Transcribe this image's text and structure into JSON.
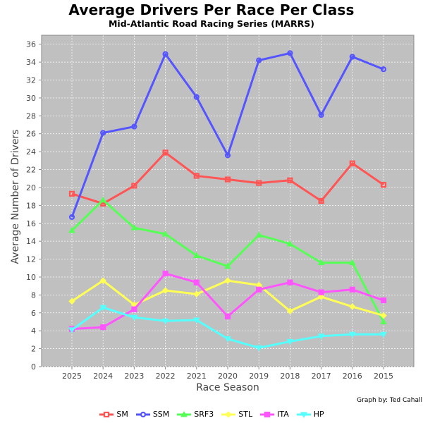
{
  "chart_data": {
    "type": "line",
    "title": "Average Drivers Per Race Per Class",
    "subtitle": "Mid-Atlantic Road Racing Series (MARRS)",
    "xlabel": "Race Season",
    "ylabel": "Average Number of Drivers",
    "credit": "Graph by: Ted Cahall",
    "categories": [
      "2025",
      "2024",
      "2023",
      "2022",
      "2021",
      "2020",
      "2019",
      "2018",
      "2017",
      "2016",
      "2015"
    ],
    "ylim": [
      0,
      37
    ],
    "yticks": [
      0,
      2,
      4,
      6,
      8,
      10,
      12,
      14,
      16,
      18,
      20,
      22,
      24,
      26,
      28,
      30,
      32,
      34,
      36
    ],
    "grid": true,
    "plot_background": "#c0c0c0",
    "legend_position": "bottom",
    "series": [
      {
        "name": "SM",
        "color": "#ff5555",
        "marker": "square",
        "values": [
          19.3,
          18.2,
          20.2,
          23.9,
          21.3,
          20.9,
          20.5,
          20.8,
          18.5,
          22.7,
          20.3
        ]
      },
      {
        "name": "SSM",
        "color": "#5555ff",
        "marker": "circle",
        "values": [
          16.7,
          26.1,
          26.8,
          34.9,
          30.1,
          23.6,
          34.2,
          35.0,
          28.1,
          34.6,
          33.2
        ]
      },
      {
        "name": "SRF3",
        "color": "#55ff55",
        "marker": "triangle-up",
        "values": [
          15.2,
          18.6,
          15.5,
          14.8,
          12.4,
          11.2,
          14.7,
          13.7,
          11.6,
          11.6,
          5.0
        ]
      },
      {
        "name": "STL",
        "color": "#ffff55",
        "marker": "diamond",
        "values": [
          7.3,
          9.6,
          6.9,
          8.5,
          8.1,
          9.6,
          9.1,
          6.2,
          7.8,
          6.7,
          5.7
        ]
      },
      {
        "name": "ITA",
        "color": "#ff55ff",
        "marker": "square",
        "values": [
          4.2,
          4.4,
          6.4,
          10.4,
          9.4,
          5.6,
          8.6,
          9.4,
          8.3,
          8.6,
          7.4
        ]
      },
      {
        "name": "HP",
        "color": "#55ffff",
        "marker": "triangle-down",
        "values": [
          4.1,
          6.6,
          5.5,
          5.1,
          5.2,
          3.1,
          2.1,
          2.8,
          3.4,
          3.6,
          3.6
        ]
      }
    ]
  }
}
